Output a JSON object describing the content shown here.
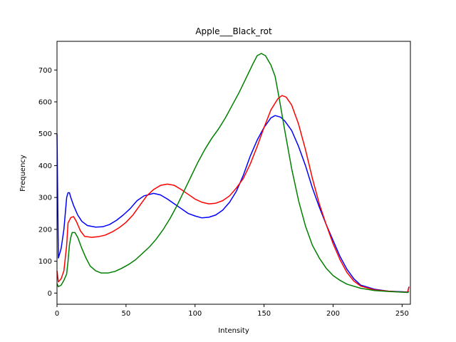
{
  "chart_data": {
    "type": "line",
    "title": "Apple___Black_rot",
    "xlabel": "Intensity",
    "ylabel": "Frequency",
    "xlim": [
      0,
      256
    ],
    "ylim": [
      -35,
      790
    ],
    "xticks": [
      0,
      50,
      100,
      150,
      200,
      250
    ],
    "yticks": [
      0,
      100,
      200,
      300,
      400,
      500,
      600,
      700
    ],
    "grid": false,
    "legend": "none",
    "series": [
      {
        "color": "#0000ff",
        "points": [
          [
            0,
            500
          ],
          [
            1,
            110
          ],
          [
            3,
            140
          ],
          [
            5,
            200
          ],
          [
            7,
            300
          ],
          [
            8,
            315
          ],
          [
            9,
            315
          ],
          [
            10,
            300
          ],
          [
            12,
            275
          ],
          [
            15,
            245
          ],
          [
            18,
            225
          ],
          [
            22,
            212
          ],
          [
            28,
            207
          ],
          [
            33,
            208
          ],
          [
            38,
            215
          ],
          [
            43,
            228
          ],
          [
            48,
            245
          ],
          [
            53,
            265
          ],
          [
            58,
            290
          ],
          [
            63,
            305
          ],
          [
            70,
            313
          ],
          [
            75,
            308
          ],
          [
            80,
            295
          ],
          [
            85,
            280
          ],
          [
            90,
            265
          ],
          [
            95,
            250
          ],
          [
            100,
            242
          ],
          [
            105,
            236
          ],
          [
            110,
            238
          ],
          [
            115,
            245
          ],
          [
            120,
            260
          ],
          [
            125,
            285
          ],
          [
            130,
            320
          ],
          [
            135,
            370
          ],
          [
            140,
            430
          ],
          [
            145,
            480
          ],
          [
            150,
            520
          ],
          [
            155,
            550
          ],
          [
            158,
            557
          ],
          [
            162,
            552
          ],
          [
            165,
            540
          ],
          [
            170,
            510
          ],
          [
            175,
            460
          ],
          [
            180,
            400
          ],
          [
            185,
            330
          ],
          [
            190,
            270
          ],
          [
            195,
            215
          ],
          [
            200,
            165
          ],
          [
            205,
            115
          ],
          [
            210,
            75
          ],
          [
            215,
            45
          ],
          [
            220,
            25
          ],
          [
            230,
            12
          ],
          [
            240,
            6
          ],
          [
            250,
            4
          ],
          [
            254,
            3
          ],
          [
            255,
            20
          ]
        ]
      },
      {
        "color": "#ff0000",
        "points": [
          [
            0,
            70
          ],
          [
            1,
            35
          ],
          [
            3,
            45
          ],
          [
            5,
            70
          ],
          [
            7,
            150
          ],
          [
            8,
            220
          ],
          [
            10,
            237
          ],
          [
            12,
            240
          ],
          [
            14,
            225
          ],
          [
            17,
            195
          ],
          [
            20,
            178
          ],
          [
            25,
            175
          ],
          [
            30,
            177
          ],
          [
            35,
            182
          ],
          [
            40,
            192
          ],
          [
            45,
            205
          ],
          [
            50,
            222
          ],
          [
            55,
            245
          ],
          [
            60,
            275
          ],
          [
            65,
            305
          ],
          [
            70,
            325
          ],
          [
            75,
            338
          ],
          [
            80,
            342
          ],
          [
            85,
            338
          ],
          [
            90,
            325
          ],
          [
            95,
            310
          ],
          [
            100,
            295
          ],
          [
            105,
            285
          ],
          [
            110,
            280
          ],
          [
            115,
            282
          ],
          [
            120,
            290
          ],
          [
            125,
            305
          ],
          [
            130,
            330
          ],
          [
            135,
            360
          ],
          [
            140,
            405
          ],
          [
            145,
            460
          ],
          [
            150,
            520
          ],
          [
            155,
            575
          ],
          [
            160,
            610
          ],
          [
            163,
            620
          ],
          [
            166,
            615
          ],
          [
            170,
            590
          ],
          [
            175,
            530
          ],
          [
            180,
            450
          ],
          [
            185,
            360
          ],
          [
            190,
            280
          ],
          [
            195,
            215
          ],
          [
            200,
            155
          ],
          [
            205,
            105
          ],
          [
            210,
            65
          ],
          [
            215,
            38
          ],
          [
            220,
            22
          ],
          [
            230,
            10
          ],
          [
            240,
            6
          ],
          [
            250,
            3
          ],
          [
            254,
            3
          ],
          [
            255,
            20
          ]
        ]
      },
      {
        "color": "#008000",
        "points": [
          [
            0,
            30
          ],
          [
            1,
            20
          ],
          [
            3,
            25
          ],
          [
            5,
            40
          ],
          [
            7,
            60
          ],
          [
            8,
            100
          ],
          [
            9,
            150
          ],
          [
            10,
            175
          ],
          [
            11,
            190
          ],
          [
            13,
            190
          ],
          [
            15,
            175
          ],
          [
            18,
            140
          ],
          [
            21,
            110
          ],
          [
            24,
            85
          ],
          [
            28,
            70
          ],
          [
            32,
            63
          ],
          [
            37,
            63
          ],
          [
            42,
            68
          ],
          [
            47,
            78
          ],
          [
            52,
            90
          ],
          [
            57,
            105
          ],
          [
            62,
            125
          ],
          [
            67,
            145
          ],
          [
            72,
            170
          ],
          [
            77,
            200
          ],
          [
            82,
            235
          ],
          [
            87,
            275
          ],
          [
            92,
            320
          ],
          [
            97,
            365
          ],
          [
            102,
            410
          ],
          [
            107,
            450
          ],
          [
            112,
            485
          ],
          [
            117,
            515
          ],
          [
            122,
            550
          ],
          [
            127,
            590
          ],
          [
            132,
            630
          ],
          [
            137,
            675
          ],
          [
            142,
            720
          ],
          [
            145,
            745
          ],
          [
            148,
            752
          ],
          [
            151,
            745
          ],
          [
            155,
            715
          ],
          [
            158,
            680
          ],
          [
            161,
            610
          ],
          [
            165,
            510
          ],
          [
            170,
            390
          ],
          [
            175,
            290
          ],
          [
            180,
            210
          ],
          [
            185,
            150
          ],
          [
            190,
            110
          ],
          [
            195,
            78
          ],
          [
            200,
            55
          ],
          [
            205,
            40
          ],
          [
            210,
            28
          ],
          [
            220,
            15
          ],
          [
            230,
            8
          ],
          [
            240,
            5
          ],
          [
            250,
            3
          ],
          [
            254,
            2
          ],
          [
            255,
            5
          ]
        ]
      }
    ]
  }
}
